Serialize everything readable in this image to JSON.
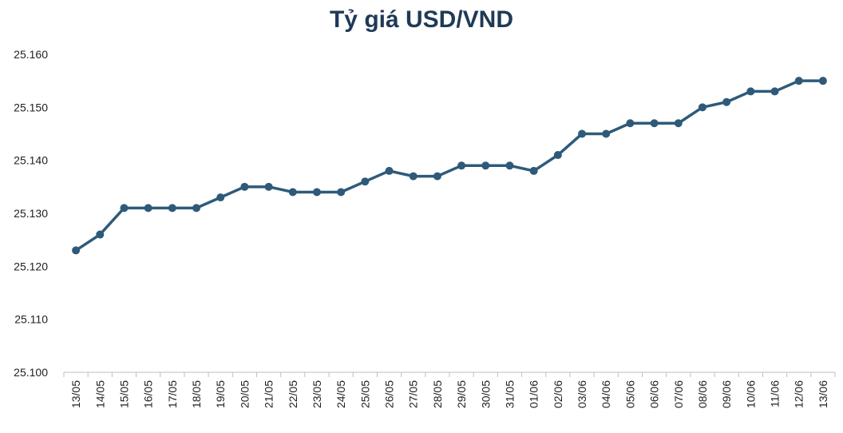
{
  "chart_data": {
    "type": "line",
    "title": "Tỷ giá USD/VND",
    "xlabel": "",
    "ylabel": "",
    "ylim": [
      25100,
      25160
    ],
    "yticks": [
      25100,
      25110,
      25120,
      25130,
      25140,
      25150,
      25160
    ],
    "ytick_labels": [
      "25.100",
      "25.110",
      "25.120",
      "25.130",
      "25.140",
      "25.150",
      "25.160"
    ],
    "grid": false,
    "line_color": "#2e5a7a",
    "categories": [
      "13/05",
      "14/05",
      "15/05",
      "16/05",
      "17/05",
      "18/05",
      "19/05",
      "20/05",
      "21/05",
      "22/05",
      "23/05",
      "24/05",
      "25/05",
      "26/05",
      "27/05",
      "28/05",
      "29/05",
      "30/05",
      "31/05",
      "01/06",
      "02/06",
      "03/06",
      "04/06",
      "05/06",
      "06/06",
      "07/06",
      "08/06",
      "09/06",
      "10/06",
      "11/06",
      "12/06",
      "13/06"
    ],
    "series": [
      {
        "values": [
          25123,
          25126,
          25131,
          25131,
          25131,
          25131,
          25133,
          25135,
          25135,
          25134,
          25134,
          25134,
          25136,
          25138,
          25137,
          25137,
          25139,
          25139,
          25139,
          25138,
          25141,
          25145,
          25145,
          25147,
          25147,
          25147,
          25150,
          25151,
          25153,
          25153,
          25155,
          25155
        ]
      }
    ]
  }
}
